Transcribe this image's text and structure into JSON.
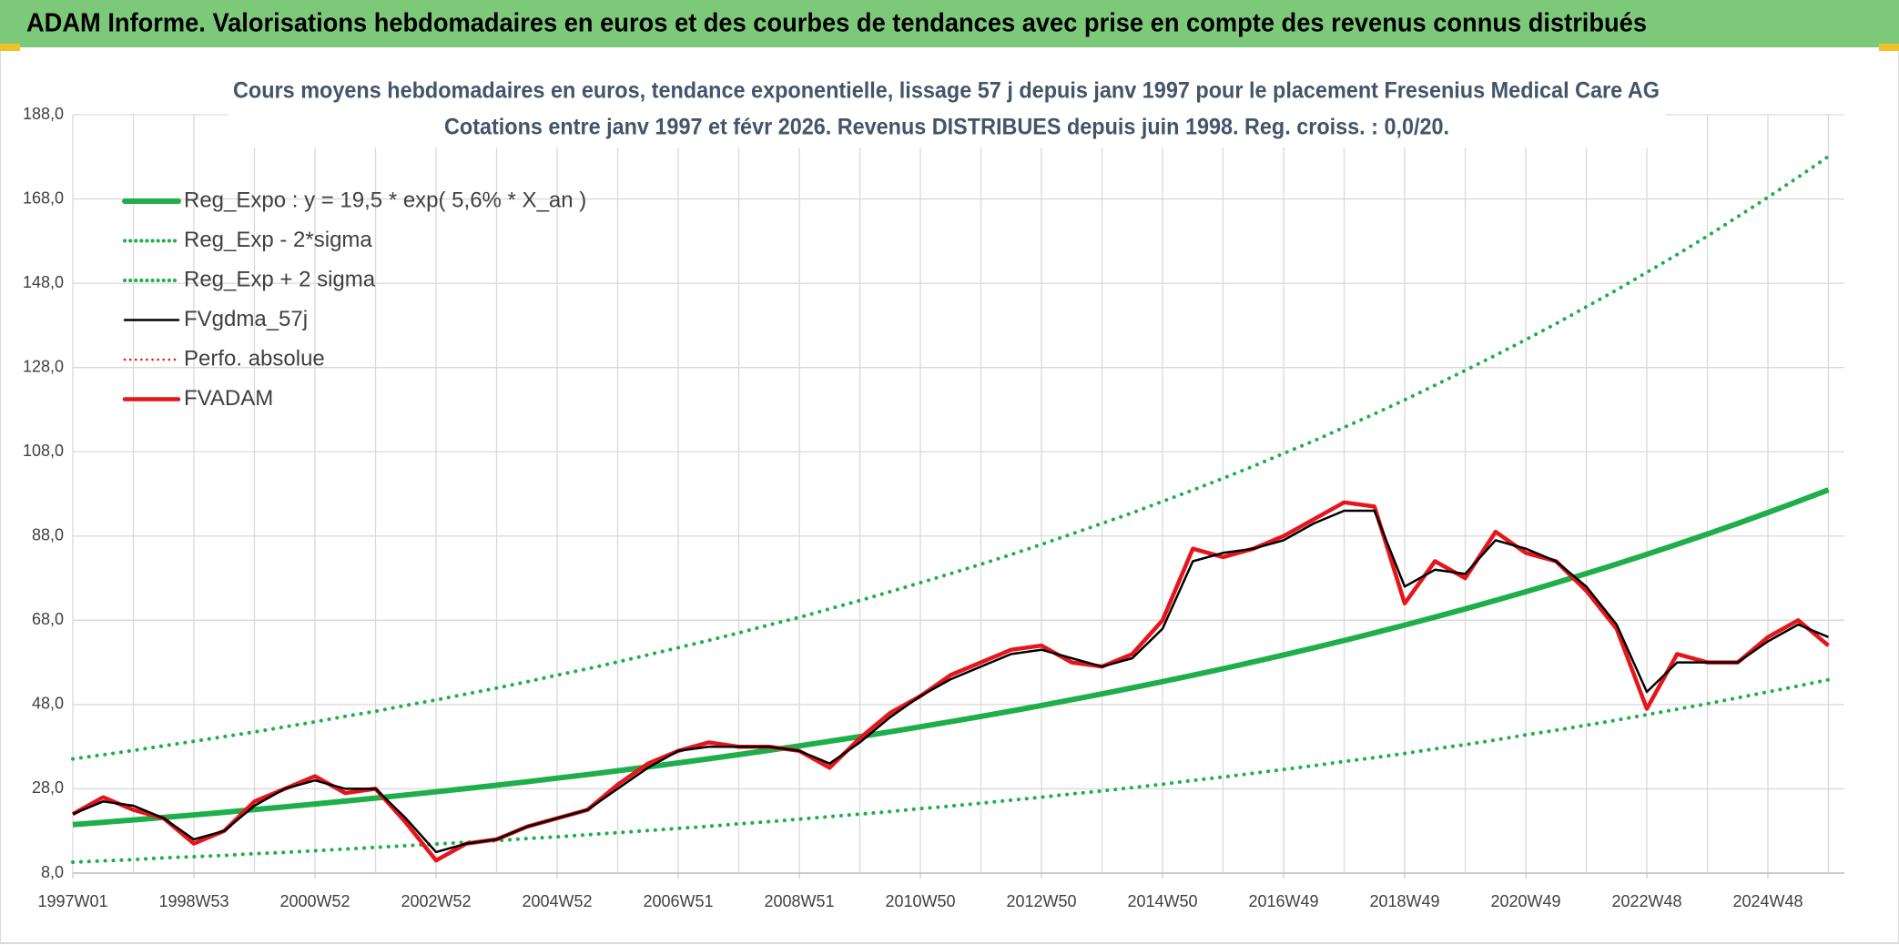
{
  "page_title": "ADAM Informe. Valorisations hebdomadaires en euros et des courbes de tendances avec prise en compte des revenus connus distribués",
  "chart_data": {
    "type": "line",
    "title": "Cours moyens hebdomadaires en euros, tendance exponentielle, lissage 57 j depuis janv 1997 pour le placement Fresenius Medical Care AG",
    "subtitle": "Cotations entre janv 1997 et févr 2026. Revenus DISTRIBUES depuis juin 1998. Reg. croiss. : 0,0/20.",
    "categories": [
      "1997W01",
      null,
      null,
      null,
      "1998W53",
      null,
      null,
      null,
      "2000W52",
      null,
      null,
      null,
      "2002W52",
      null,
      null,
      null,
      "2004W52",
      null,
      null,
      null,
      "2006W51",
      null,
      null,
      null,
      "2008W51",
      null,
      null,
      null,
      "2010W50",
      null,
      null,
      null,
      "2012W50",
      null,
      null,
      null,
      "2014W50",
      null,
      null,
      null,
      "2016W49",
      null,
      null,
      null,
      "2018W49",
      null,
      null,
      null,
      "2020W49",
      null,
      null,
      null,
      "2022W48",
      null,
      null,
      null,
      "2024W48",
      null,
      null
    ],
    "ylim": [
      8,
      188
    ],
    "yticks": [
      {
        "value": 8,
        "label": "8,0"
      },
      {
        "value": 28,
        "label": "28,0"
      },
      {
        "value": 48,
        "label": "48,0"
      },
      {
        "value": 68,
        "label": "68,0"
      },
      {
        "value": 88,
        "label": "88,0"
      },
      {
        "value": 108,
        "label": "108,0"
      },
      {
        "value": 128,
        "label": "128,0"
      },
      {
        "value": 148,
        "label": "148,0"
      },
      {
        "value": 168,
        "label": "168,0"
      },
      {
        "value": 188,
        "label": "188,0"
      }
    ],
    "grid": true,
    "legend": "top-left",
    "series": [
      {
        "name": "Reg_Expo : y = 19,5 * exp( 5,6% *  X_an )",
        "color": "#1eae4a",
        "dotted": false,
        "values": [
          19.5,
          20.05,
          20.62,
          21.21,
          21.81,
          22.43,
          23.07,
          23.72,
          24.4,
          25.09,
          25.8,
          26.54,
          27.29,
          28.07,
          28.86,
          29.68,
          30.53,
          31.39,
          32.28,
          33.2,
          34.14,
          35.11,
          36.11,
          37.14,
          38.19,
          39.28,
          40.39,
          41.54,
          42.72,
          43.93,
          45.18,
          46.46,
          47.78,
          49.14,
          50.53,
          51.97,
          53.44,
          54.96,
          56.52,
          58.12,
          59.77,
          61.47,
          63.22,
          65.01,
          66.86,
          68.76,
          70.71,
          72.72,
          74.78,
          76.91,
          79.09,
          81.34,
          83.65,
          86.02,
          88.46,
          90.98,
          93.56,
          96.22,
          98.95
        ]
      },
      {
        "name": "Reg_Exp - 2*sigma",
        "color": "#1eae4a",
        "dotted": true,
        "values": [
          10.6,
          10.9,
          11.2,
          11.6,
          11.9,
          12.2,
          12.6,
          12.9,
          13.3,
          13.7,
          14.1,
          14.5,
          14.9,
          15.3,
          15.7,
          16.2,
          16.6,
          17.1,
          17.6,
          18.1,
          18.6,
          19.1,
          19.7,
          20.2,
          20.8,
          21.4,
          22.0,
          22.6,
          23.3,
          23.9,
          24.6,
          25.3,
          26.0,
          26.8,
          27.5,
          28.3,
          29.1,
          30.0,
          30.8,
          31.7,
          32.6,
          33.5,
          34.5,
          35.4,
          36.4,
          37.5,
          38.5,
          39.6,
          40.8,
          41.9,
          43.1,
          44.3,
          45.6,
          46.9,
          48.2,
          49.6,
          51.0,
          52.4,
          53.9
        ]
      },
      {
        "name": "Reg_Exp + 2 sigma",
        "color": "#1eae4a",
        "dotted": true,
        "values": [
          35.1,
          36.1,
          37.1,
          38.2,
          39.3,
          40.4,
          41.5,
          42.7,
          43.9,
          45.2,
          46.4,
          47.8,
          49.1,
          50.5,
          51.9,
          53.4,
          55.0,
          56.5,
          58.1,
          59.8,
          61.5,
          63.2,
          65.0,
          66.9,
          68.7,
          70.7,
          72.7,
          74.8,
          76.9,
          79.1,
          81.3,
          83.6,
          86.0,
          88.5,
          91.0,
          93.5,
          96.2,
          98.9,
          101.7,
          104.6,
          107.6,
          110.6,
          113.8,
          117.0,
          120.3,
          123.8,
          127.3,
          130.9,
          134.6,
          138.4,
          142.4,
          146.4,
          150.6,
          154.8,
          159.2,
          163.8,
          168.4,
          173.2,
          178.1
        ]
      },
      {
        "name": "FVgdma_57j",
        "color": "#000000",
        "dotted": false,
        "values": [
          22,
          25,
          24,
          21,
          16,
          18,
          24,
          28,
          30,
          28,
          28,
          21,
          13,
          15,
          16,
          19,
          21,
          23,
          28,
          33,
          37,
          38,
          38,
          38,
          37,
          34,
          39,
          45,
          50,
          54,
          57,
          60,
          61,
          59,
          57,
          59,
          66,
          82,
          84,
          85,
          87,
          91,
          94,
          94,
          76,
          80,
          79,
          87,
          85,
          82,
          76,
          67,
          51,
          58,
          58,
          58,
          63,
          67,
          64
        ]
      },
      {
        "name": "Perfo. absolue",
        "color": "#e8141b",
        "dotted": true,
        "values": [
          null,
          null,
          null,
          null,
          null,
          null,
          null,
          null,
          null,
          null,
          null,
          null,
          null,
          null,
          null,
          null,
          null,
          null,
          null,
          null,
          null,
          null,
          null,
          null,
          null,
          null,
          null,
          null,
          null,
          null,
          null,
          null,
          null,
          null,
          null,
          null,
          null,
          null,
          null,
          null,
          null,
          null,
          null,
          null,
          null,
          null,
          null,
          null,
          null,
          null,
          null,
          null,
          null,
          null,
          null,
          null,
          null,
          null,
          null
        ]
      },
      {
        "name": "FVADAM",
        "color": "#e8141b",
        "dotted": false,
        "values": [
          22,
          26,
          23,
          21,
          15,
          18,
          25,
          28,
          31,
          27,
          28,
          20,
          11,
          15,
          16,
          19,
          21,
          23,
          29,
          34,
          37,
          39,
          38,
          38,
          37,
          33,
          40,
          46,
          50,
          55,
          58,
          61,
          62,
          58,
          57,
          60,
          68,
          85,
          83,
          85,
          88,
          92,
          96,
          95,
          72,
          82,
          78,
          89,
          84,
          82,
          75,
          66,
          47,
          60,
          58,
          58,
          64,
          68,
          62
        ]
      }
    ]
  }
}
